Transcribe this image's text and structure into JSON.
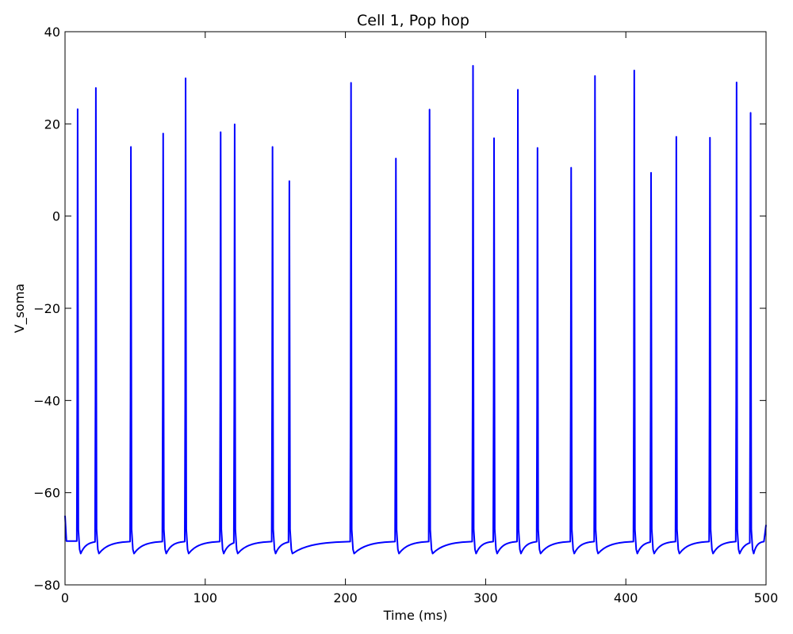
{
  "chart_data": {
    "type": "line",
    "title": "Cell 1, Pop hop",
    "xlabel": "Time (ms)",
    "ylabel": "V_soma",
    "xlim": [
      0,
      500
    ],
    "ylim": [
      -80,
      40
    ],
    "xticks": [
      0,
      100,
      200,
      300,
      400,
      500
    ],
    "yticks": [
      -80,
      -60,
      -40,
      -20,
      0,
      20,
      40
    ],
    "xtick_labels": [
      "0",
      "100",
      "200",
      "300",
      "400",
      "500"
    ],
    "ytick_labels": [
      "−80",
      "−60",
      "−40",
      "−20",
      "0",
      "20",
      "40"
    ],
    "grid": false,
    "line_color": "#0000ff",
    "resting_potential": -70.5,
    "afterhyperpolarization": -73.2,
    "series": [
      {
        "spikes": [
          {
            "t": 9,
            "peak": 23.2
          },
          {
            "t": 22,
            "peak": 27.8
          },
          {
            "t": 47,
            "peak": 15.0
          },
          {
            "t": 70,
            "peak": 17.9
          },
          {
            "t": 86,
            "peak": 29.9
          },
          {
            "t": 111,
            "peak": 18.2
          },
          {
            "t": 121,
            "peak": 19.9
          },
          {
            "t": 148,
            "peak": 15.0
          },
          {
            "t": 160,
            "peak": 7.6
          },
          {
            "t": 204,
            "peak": 28.9
          },
          {
            "t": 236,
            "peak": 12.5
          },
          {
            "t": 260,
            "peak": 23.1
          },
          {
            "t": 291,
            "peak": 32.6
          },
          {
            "t": 306,
            "peak": 16.9
          },
          {
            "t": 323,
            "peak": 27.4
          },
          {
            "t": 337,
            "peak": 14.8
          },
          {
            "t": 361,
            "peak": 10.5
          },
          {
            "t": 378,
            "peak": 30.4
          },
          {
            "t": 406,
            "peak": 31.6
          },
          {
            "t": 418,
            "peak": 9.4
          },
          {
            "t": 436,
            "peak": 17.2
          },
          {
            "t": 460,
            "peak": 17.0
          },
          {
            "t": 479,
            "peak": 29.0
          },
          {
            "t": 489,
            "peak": 22.4
          }
        ]
      }
    ]
  }
}
